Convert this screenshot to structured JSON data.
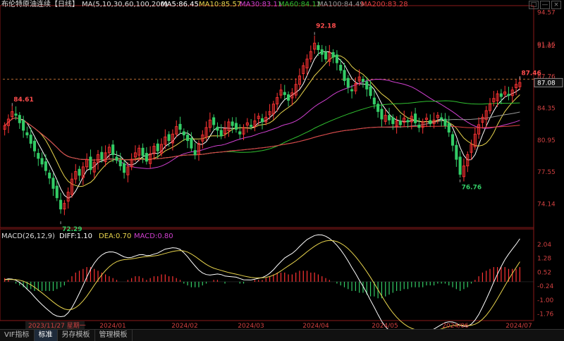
{
  "header": {
    "instrument": "布伦特原油连续【日线】",
    "ma_label": "MA(5,10,30,60,100,200)",
    "ma_values": [
      {
        "label": "MA5:86.45",
        "color": "#ffffff"
      },
      {
        "label": "MA10:85.57",
        "color": "#e8d44d"
      },
      {
        "label": "MA30:83.11",
        "color": "#d040d0"
      },
      {
        "label": "MA60:84.12",
        "color": "#30c030"
      },
      {
        "label": "MA100:84.49",
        "color": "#999999"
      },
      {
        "label": "MA200:83.28",
        "color": "#e04040"
      }
    ]
  },
  "macd_header": {
    "label": "MACD(26,12,9)",
    "diff": "DIFF:1.10",
    "dea": "DEA:0.70",
    "macd": "MACD:0.80"
  },
  "window_buttons": [
    "□",
    "—",
    "×"
  ],
  "footer": {
    "hover_date": "2023/11/27 星期一",
    "tabs": [
      {
        "label": "VIF指标",
        "active": false
      },
      {
        "label": "标准",
        "active": true
      },
      {
        "label": "另存模板",
        "active": false
      },
      {
        "label": "管理模板",
        "active": false
      }
    ]
  },
  "colors": {
    "up": "#ff3333",
    "down": "#33cc66",
    "ma5": "#ffffff",
    "ma10": "#e8d44d",
    "ma30": "#d040d0",
    "ma60": "#30c030",
    "ma100": "#999999",
    "ma200": "#e04040",
    "axis_text": "#d04040",
    "dif": "#ffffff",
    "dea": "#e8d44d"
  },
  "chart_data": {
    "type": "candlestick",
    "x_labels": [
      "2024/01",
      "2024/02",
      "2024/03",
      "2024/04",
      "2024/05",
      "2024/06",
      "2024/07"
    ],
    "price_axis": {
      "ticks": [
        "94.57",
        "91.16",
        "91.02",
        "87.76",
        "87.08",
        "84.35",
        "80.95",
        "77.55",
        "74.14"
      ],
      "range": [
        72.0,
        95.0
      ]
    },
    "macd_axis": {
      "ticks": [
        "2.04",
        "1.28",
        "0.52",
        "-0.24",
        "-1.00",
        "-1.76"
      ],
      "range": [
        -2.0,
        2.3
      ]
    },
    "annotations": [
      {
        "text": "92.18",
        "kind": "high"
      },
      {
        "text": "84.61",
        "kind": "high"
      },
      {
        "text": "87.46",
        "kind": "high"
      },
      {
        "text": "72.29",
        "kind": "low"
      },
      {
        "text": "76.76",
        "kind": "low"
      }
    ],
    "last_price": 87.08,
    "last_high": 87.46,
    "closes": [
      82.5,
      83.2,
      84.0,
      83.6,
      82.8,
      82.0,
      81.5,
      80.6,
      79.8,
      79.0,
      78.4,
      77.7,
      76.9,
      75.8,
      74.8,
      73.6,
      74.2,
      75.4,
      76.8,
      77.6,
      77.2,
      78.1,
      78.9,
      77.8,
      78.6,
      79.4,
      78.9,
      79.6,
      80.2,
      79.4,
      78.8,
      78.2,
      77.5,
      78.1,
      78.9,
      79.6,
      80.1,
      79.3,
      78.7,
      79.5,
      80.3,
      79.8,
      80.5,
      81.3,
      80.9,
      81.6,
      82.4,
      82.1,
      81.5,
      80.9,
      80.1,
      79.4,
      80.6,
      81.5,
      82.3,
      83.1,
      82.6,
      82.0,
      81.4,
      82.2,
      82.9,
      82.5,
      82.1,
      81.6,
      82.3,
      82.8,
      82.4,
      83.0,
      83.5,
      82.9,
      83.4,
      84.0,
      84.8,
      85.5,
      86.3,
      85.8,
      85.2,
      86.0,
      86.9,
      87.8,
      88.9,
      89.6,
      90.4,
      91.3,
      90.6,
      90.1,
      89.6,
      90.3,
      89.8,
      89.2,
      88.4,
      87.3,
      86.6,
      86.2,
      87.0,
      87.7,
      87.2,
      86.4,
      85.7,
      84.8,
      84.0,
      83.2,
      83.6,
      83.1,
      82.7,
      83.0,
      82.6,
      83.3,
      82.9,
      83.5,
      82.8,
      82.3,
      82.9,
      83.3,
      82.7,
      83.1,
      83.6,
      83.2,
      82.5,
      81.8,
      80.4,
      78.9,
      77.3,
      78.2,
      79.4,
      80.5,
      81.6,
      82.6,
      83.4,
      84.1,
      84.8,
      85.4,
      85.9,
      85.6,
      86.1,
      85.7,
      86.3,
      86.9,
      87.1
    ],
    "macd_hist": [
      0.2,
      0.1,
      0.0,
      -0.1,
      -0.2,
      -0.3,
      -0.4,
      -0.4,
      -0.5,
      -0.5,
      -0.5,
      -0.5,
      -0.5,
      -0.5,
      -0.4,
      -0.3,
      -0.2,
      0.1,
      0.3,
      0.5,
      0.6,
      0.7,
      0.8,
      0.8,
      0.7,
      0.6,
      0.5,
      0.4,
      0.3,
      0.2,
      0.1,
      0.0,
      0.0,
      0.1,
      0.2,
      0.3,
      0.3,
      0.2,
      0.1,
      0.2,
      0.3,
      0.3,
      0.4,
      0.4,
      0.3,
      0.3,
      0.2,
      0.1,
      -0.1,
      -0.2,
      -0.3,
      -0.3,
      -0.3,
      -0.2,
      -0.1,
      0.0,
      0.1,
      0.1,
      0.0,
      -0.1,
      0.0,
      0.0,
      0.0,
      -0.1,
      -0.1,
      0.0,
      0.0,
      0.1,
      0.1,
      0.1,
      0.2,
      0.3,
      0.4,
      0.5,
      0.5,
      0.5,
      0.4,
      0.4,
      0.5,
      0.6,
      0.6,
      0.6,
      0.5,
      0.5,
      0.4,
      0.3,
      0.2,
      0.1,
      0.0,
      -0.1,
      -0.2,
      -0.3,
      -0.4,
      -0.5,
      -0.5,
      -0.6,
      -0.6,
      -0.7,
      -0.8,
      -0.8,
      -0.9,
      -0.9,
      -0.8,
      -0.7,
      -0.6,
      -0.5,
      -0.5,
      -0.4,
      -0.4,
      -0.3,
      -0.3,
      -0.3,
      -0.3,
      -0.2,
      -0.2,
      -0.2,
      -0.1,
      -0.1,
      -0.1,
      -0.2,
      -0.3,
      -0.4,
      -0.5,
      -0.4,
      -0.3,
      -0.1,
      0.1,
      0.3,
      0.5,
      0.6,
      0.7,
      0.8,
      0.8,
      0.8,
      0.8,
      0.7,
      0.7,
      0.7,
      0.8
    ]
  }
}
